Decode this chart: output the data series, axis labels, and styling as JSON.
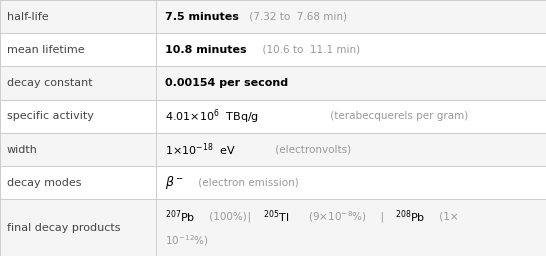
{
  "col_split": 0.285,
  "background_color": "#ffffff",
  "border_color": "#cccccc",
  "label_color": "#444444",
  "gray_color": "#999999",
  "fig_width": 5.46,
  "fig_height": 2.56,
  "row_heights": [
    1,
    1,
    1,
    1,
    1,
    1,
    1.7
  ],
  "labels": [
    "half-life",
    "mean lifetime",
    "decay constant",
    "specific activity",
    "width",
    "decay modes",
    "final decay products"
  ],
  "fs_label": 8.0,
  "fs_value": 8.0,
  "fs_gray": 7.5
}
